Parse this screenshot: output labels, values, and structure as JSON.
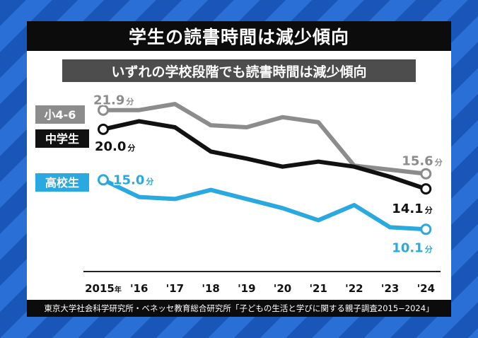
{
  "title": "学生の読書時間は減少傾向",
  "subtitle": "いずれの学校段階でも読書時間は減少傾向",
  "source": "東京大学社会科学研究所・ベネッセ教育総合研究所「子どもの生活と学びに関する親子調査2015−2024」",
  "colors": {
    "background": "#1f5fc4",
    "elementary": "#8c8c8c",
    "junior": "#111111",
    "high": "#29a9df"
  },
  "chart_data": {
    "type": "line",
    "x": [
      "2015年",
      "'16",
      "'17",
      "'18",
      "'19",
      "'20",
      "'21",
      "'22",
      "'23",
      "'24"
    ],
    "unit": "分",
    "series": [
      {
        "name": "小4-6",
        "values": [
          21.9,
          21.9,
          22.5,
          20.4,
          20.2,
          21.2,
          20.7,
          16.4,
          16.0,
          15.6
        ]
      },
      {
        "name": "中学生",
        "values": [
          20.0,
          20.8,
          20.2,
          17.8,
          17.1,
          16.3,
          16.8,
          16.3,
          15.3,
          14.1
        ]
      },
      {
        "name": "高校生",
        "values": [
          15.0,
          13.3,
          13.1,
          14.0,
          13.1,
          12.2,
          11.0,
          12.5,
          10.3,
          10.1
        ]
      }
    ],
    "labels": [
      {
        "series": 0,
        "index": 0,
        "value": "21.9",
        "unit": "分"
      },
      {
        "series": 0,
        "index": 9,
        "value": "15.6",
        "unit": "分"
      },
      {
        "series": 1,
        "index": 0,
        "value": "20.0",
        "unit": "分"
      },
      {
        "series": 1,
        "index": 9,
        "value": "14.1",
        "unit": "分"
      },
      {
        "series": 2,
        "index": 0,
        "value": "15.0",
        "unit": "分"
      },
      {
        "series": 2,
        "index": 9,
        "value": "10.1",
        "unit": "分"
      }
    ],
    "ylim": [
      9,
      23
    ],
    "grid": false,
    "legend": "left"
  }
}
